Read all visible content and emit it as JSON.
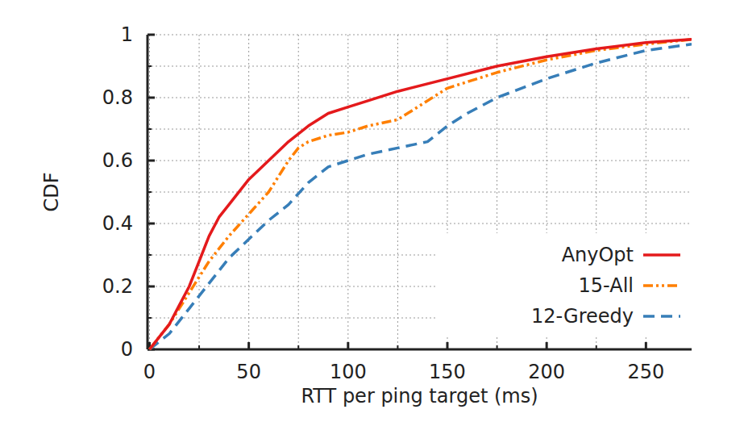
{
  "chart_data": {
    "type": "line",
    "x_label": "RTT per ping target (ms)",
    "y_label": "CDF",
    "xlim": [
      -1,
      273
    ],
    "ylim": [
      0,
      1
    ],
    "xticks": [
      0,
      50,
      100,
      150,
      200,
      250
    ],
    "yticks": [
      0,
      0.2,
      0.4,
      0.6,
      0.8,
      1
    ],
    "grid": true,
    "legend": "lower right",
    "series": [
      {
        "name": "AnyOpt",
        "color": "#e41a1c",
        "line_style": "solid",
        "x": [
          0,
          5,
          10,
          15,
          20,
          25,
          30,
          35,
          40,
          50,
          60,
          70,
          80,
          90,
          100,
          110,
          125,
          150,
          175,
          200,
          225,
          250,
          273
        ],
        "values": [
          0,
          0.04,
          0.08,
          0.14,
          0.2,
          0.28,
          0.36,
          0.42,
          0.46,
          0.54,
          0.6,
          0.66,
          0.71,
          0.75,
          0.77,
          0.79,
          0.82,
          0.86,
          0.9,
          0.93,
          0.955,
          0.975,
          0.985
        ]
      },
      {
        "name": "15-All",
        "color": "#ff7f00",
        "line_style": "dashdotdot",
        "x": [
          0,
          10,
          20,
          30,
          40,
          50,
          60,
          65,
          70,
          75,
          80,
          90,
          100,
          110,
          125,
          135,
          145,
          150,
          175,
          200,
          225,
          250,
          273
        ],
        "values": [
          0,
          0.08,
          0.18,
          0.28,
          0.36,
          0.43,
          0.5,
          0.55,
          0.6,
          0.64,
          0.66,
          0.68,
          0.69,
          0.71,
          0.73,
          0.77,
          0.81,
          0.83,
          0.88,
          0.92,
          0.95,
          0.97,
          0.985
        ]
      },
      {
        "name": "12-Greedy",
        "color": "#377eb8",
        "line_style": "dashed",
        "x": [
          0,
          10,
          20,
          30,
          40,
          50,
          60,
          70,
          80,
          90,
          100,
          110,
          125,
          140,
          150,
          160,
          175,
          200,
          225,
          250,
          273
        ],
        "values": [
          0,
          0.05,
          0.13,
          0.21,
          0.29,
          0.35,
          0.41,
          0.46,
          0.53,
          0.58,
          0.6,
          0.62,
          0.64,
          0.66,
          0.71,
          0.75,
          0.8,
          0.86,
          0.91,
          0.95,
          0.97
        ]
      }
    ]
  }
}
